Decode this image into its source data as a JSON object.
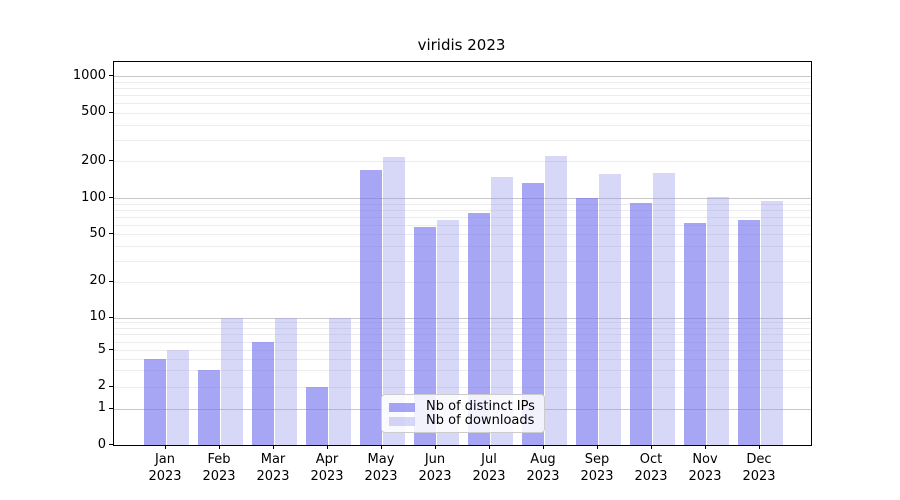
{
  "chart_data": {
    "type": "bar",
    "title": "viridis 2023",
    "categories": [
      "Jan 2023",
      "Feb 2023",
      "Mar 2023",
      "Apr 2023",
      "May 2023",
      "Jun 2023",
      "Jul 2023",
      "Aug 2023",
      "Sep 2023",
      "Oct 2023",
      "Nov 2023",
      "Dec 2023"
    ],
    "series": [
      {
        "name": "Nb of distinct IPs",
        "color": "rgba(114,114,238,0.63)",
        "values": [
          4,
          3,
          6,
          2,
          170,
          57,
          75,
          133,
          100,
          91,
          62,
          66
        ]
      },
      {
        "name": "Nb of downloads",
        "color": "rgba(145,145,235,0.36)",
        "values": [
          5,
          10,
          10,
          10,
          215,
          65,
          148,
          223,
          158,
          160,
          102,
          95
        ]
      }
    ],
    "xlabel": "",
    "ylabel": "",
    "y_scale": "symlog",
    "ylim": [
      0,
      1300
    ],
    "y_tick_values": [
      0,
      1,
      2,
      5,
      10,
      20,
      50,
      100,
      200,
      500,
      1000
    ],
    "y_tick_labels": [
      "0",
      "1",
      "2",
      "5",
      "10",
      "20",
      "50",
      "100",
      "200",
      "500",
      "1000"
    ],
    "y_major_gridlines": [
      1,
      10,
      100,
      1000
    ],
    "y_minor_gridlines": [
      2,
      3,
      4,
      5,
      6,
      7,
      8,
      9,
      20,
      30,
      40,
      50,
      60,
      70,
      80,
      90,
      200,
      300,
      400,
      500,
      600,
      700,
      800,
      900
    ],
    "y_scale_anchors": [
      [
        0,
        444
      ],
      [
        1,
        407.5
      ],
      [
        2,
        385.5
      ],
      [
        5,
        349
      ],
      [
        10,
        316.5
      ],
      [
        100,
        197
      ],
      [
        1000,
        75
      ]
    ],
    "grid": true,
    "legend_position": "lower-center"
  },
  "legend": {
    "items": [
      "Nb of distinct IPs",
      "Nb of downloads"
    ]
  },
  "colors": {
    "bar_distinct_ips": "rgba(114,114,238,0.63)",
    "bar_downloads": "rgba(145,145,235,0.36)",
    "grid_major": "#c9c9c9",
    "grid_minor": "#ececec",
    "axis": "#000000",
    "legend_border": "#cccccc"
  }
}
